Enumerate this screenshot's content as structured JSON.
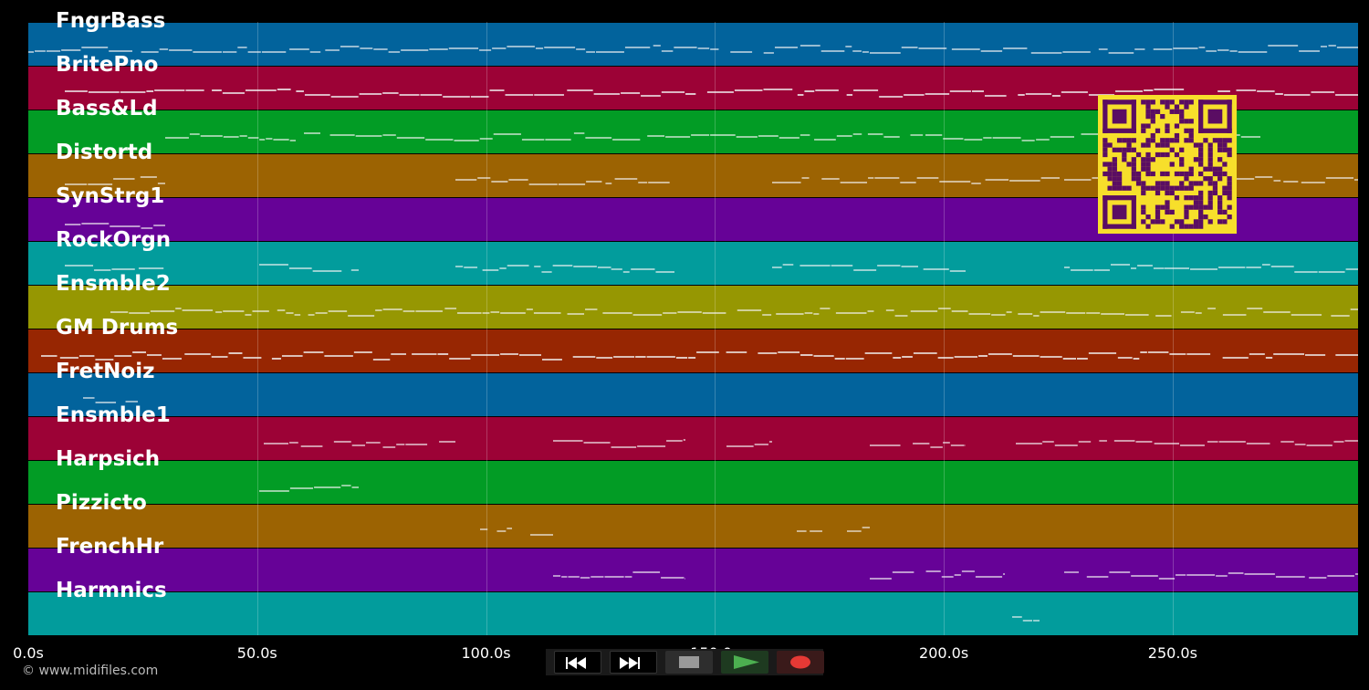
{
  "tracks": [
    {
      "name": "FngrBass",
      "color": "#02639c"
    },
    {
      "name": "BritePno",
      "color": "#9c0236"
    },
    {
      "name": "Bass&Ld",
      "color": "#029c25"
    },
    {
      "name": "Distortd",
      "color": "#9c6302"
    },
    {
      "name": "SynStrg1",
      "color": "#660297"
    },
    {
      "name": "RockOrgn",
      "color": "#029c9c"
    },
    {
      "name": "Ensmble2",
      "color": "#969702"
    },
    {
      "name": "GM Drums",
      "color": "#972602"
    },
    {
      "name": "FretNoiz",
      "color": "#02639c"
    },
    {
      "name": "Ensmble1",
      "color": "#9c0236"
    },
    {
      "name": "Harpsich",
      "color": "#029c25"
    },
    {
      "name": "Pizzicto",
      "color": "#9c6302"
    },
    {
      "name": "FrenchHr",
      "color": "#660297"
    },
    {
      "name": "Harmnics",
      "color": "#029c9c"
    }
  ],
  "time_axis": {
    "ticks": [
      "0.0s",
      "50.0s",
      "100.0s",
      "150.0s",
      "200.0s",
      "250.0s"
    ],
    "tick_values": [
      0,
      50,
      100,
      150,
      200,
      250
    ],
    "max_seconds": 290.5
  },
  "copyright": "© www.midifiles.com",
  "transport": {
    "rewind": "rewind-icon",
    "fast_forward": "fast-forward-icon",
    "stop": "stop-icon",
    "play": "play-icon",
    "record": "record-icon",
    "play_color": "#4caf50",
    "record_color": "#e53935"
  }
}
